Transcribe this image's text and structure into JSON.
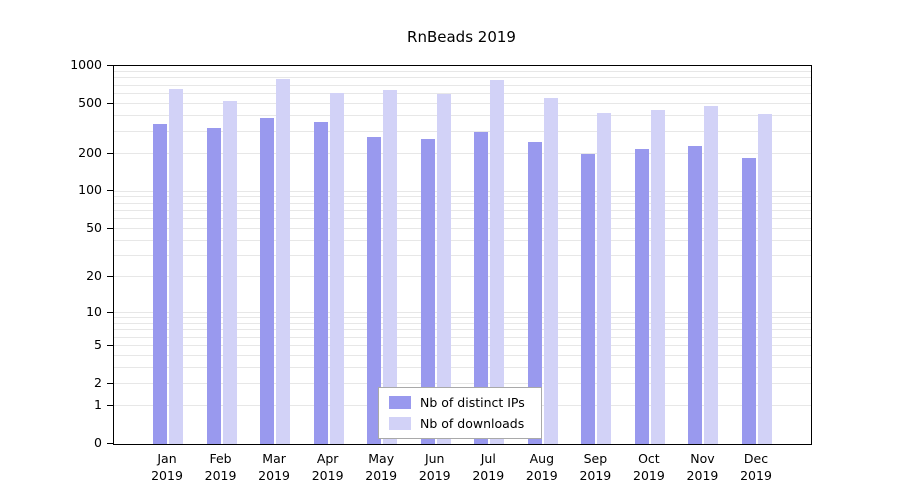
{
  "chart_data": {
    "type": "bar",
    "title": "RnBeads 2019",
    "categories": [
      "Jan",
      "Feb",
      "Mar",
      "Apr",
      "May",
      "Jun",
      "Jul",
      "Aug",
      "Sep",
      "Oct",
      "Nov",
      "Dec"
    ],
    "year_label": "2019",
    "series": [
      {
        "name": "Nb of distinct IPs",
        "color": "#9999ee",
        "values": [
          345,
          320,
          385,
          360,
          275,
          265,
          300,
          250,
          200,
          220,
          230,
          185
        ]
      },
      {
        "name": "Nb of downloads",
        "color": "#d2d2f7",
        "values": [
          660,
          525,
          785,
          610,
          640,
          595,
          770,
          555,
          420,
          450,
          480,
          415
        ]
      }
    ],
    "y_ticks": [
      0,
      1,
      2,
      5,
      10,
      20,
      50,
      100,
      200,
      500,
      1000
    ],
    "y_scale": "log(v+1)",
    "ylim": [
      0,
      1000
    ],
    "grid": true,
    "grid_color": "#e7e7e7",
    "axis_color": "#000000",
    "legend_position": "bottom-center"
  }
}
